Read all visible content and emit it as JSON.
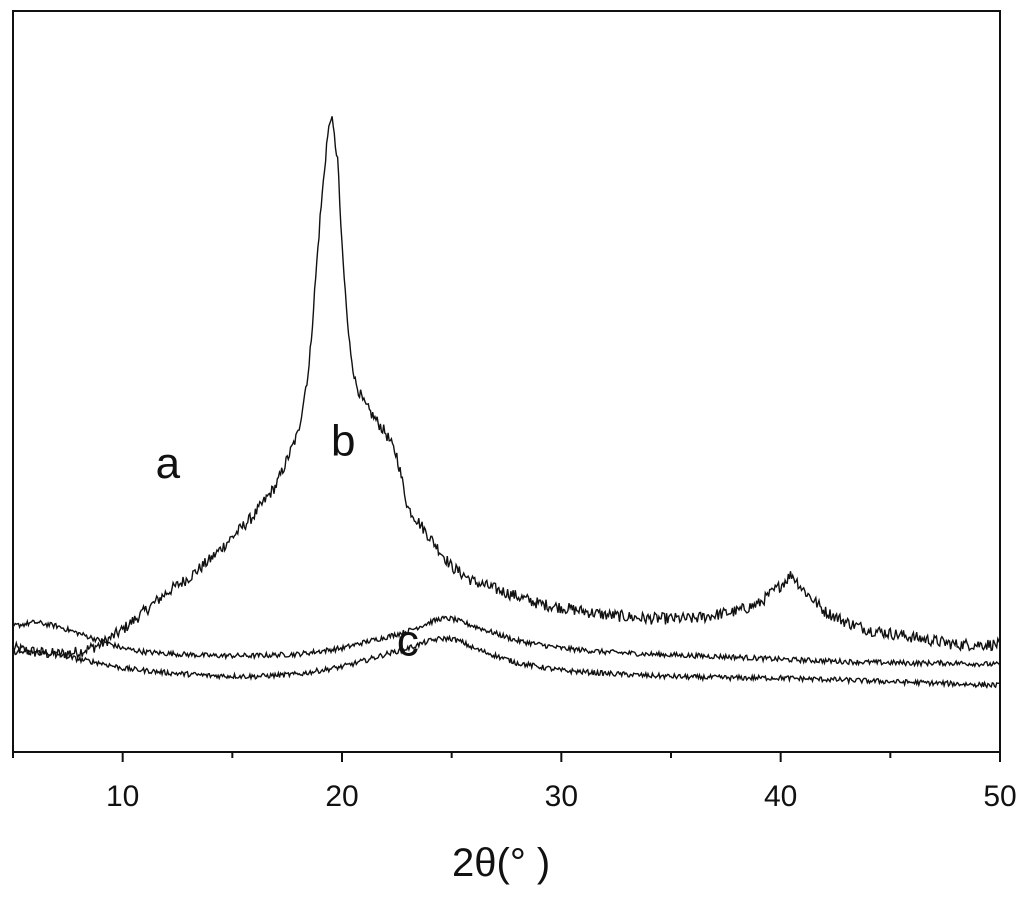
{
  "chart_data": {
    "type": "line",
    "xlabel": "2θ(°  )",
    "ylabel": "",
    "xlim": [
      5,
      50
    ],
    "x_ticks": [
      10,
      20,
      30,
      40,
      50
    ],
    "x_minor_step": 5,
    "y_ticks_shown": false,
    "grid": false,
    "legend": "none",
    "ylim": [
      0,
      100
    ],
    "series": [
      {
        "name": "a",
        "label_at": [
          11.5,
          37
        ],
        "x": [
          5,
          6,
          7,
          8,
          9,
          10,
          11,
          12,
          13,
          14,
          15,
          16,
          17,
          18,
          18.5,
          19,
          19.3,
          19.5,
          19.8,
          20,
          20.3,
          20.6,
          21,
          21.5,
          22,
          22.5,
          23,
          24,
          25,
          26,
          27,
          28,
          29,
          30,
          32,
          34,
          36,
          38,
          39,
          40,
          40.5,
          41,
          42,
          43,
          44,
          45,
          46,
          47,
          48,
          49,
          50
        ],
        "y": [
          14,
          13.5,
          13.2,
          13.5,
          14.5,
          16.5,
          19,
          21.5,
          23.5,
          26,
          29,
          32,
          36,
          43,
          52,
          72,
          82,
          86,
          80,
          68,
          56,
          50,
          47,
          45,
          43,
          40,
          33,
          29,
          25,
          23,
          22,
          21,
          20,
          19.5,
          18.5,
          18,
          18,
          19,
          20,
          22.5,
          24,
          22,
          19,
          17.5,
          16.5,
          16,
          15.5,
          15,
          14.5,
          14.5,
          14.5
        ]
      },
      {
        "name": "b",
        "label_at": [
          19.5,
          40
        ],
        "x": [
          5,
          6,
          7,
          8,
          9,
          10,
          11,
          12,
          14,
          16,
          18,
          20,
          21,
          22,
          23,
          24,
          24.5,
          25,
          25.5,
          26,
          27,
          28,
          29,
          30,
          32,
          34,
          36,
          38,
          40,
          42,
          44,
          46,
          48,
          50
        ],
        "y": [
          17,
          17.5,
          17,
          16,
          15,
          14,
          13.5,
          13.3,
          13,
          13,
          13.2,
          14,
          14.8,
          15.5,
          16.3,
          17.5,
          18,
          18,
          17.5,
          17,
          16,
          15,
          14.5,
          14,
          13.5,
          13.2,
          13,
          12.8,
          12.5,
          12.3,
          12.1,
          12,
          12,
          11.8
        ]
      },
      {
        "name": "c",
        "label_at": [
          22.5,
          13
        ],
        "x": [
          5,
          6,
          7,
          8,
          9,
          10,
          11,
          12,
          14,
          16,
          18,
          20,
          21,
          22,
          23,
          24,
          24.5,
          25,
          25.5,
          26,
          27,
          28,
          29,
          30,
          32,
          34,
          36,
          38,
          40,
          42,
          44,
          46,
          48,
          50
        ],
        "y": [
          13.5,
          13.5,
          13.2,
          12.5,
          12,
          11.3,
          11,
          10.7,
          10.3,
          10.2,
          10.5,
          11.5,
          12.3,
          13.2,
          14,
          15,
          15.3,
          15.3,
          14.8,
          14,
          13,
          12,
          11.5,
          11,
          10.6,
          10.3,
          10.1,
          10,
          10,
          9.8,
          9.6,
          9.4,
          9.2,
          9
        ]
      }
    ]
  }
}
